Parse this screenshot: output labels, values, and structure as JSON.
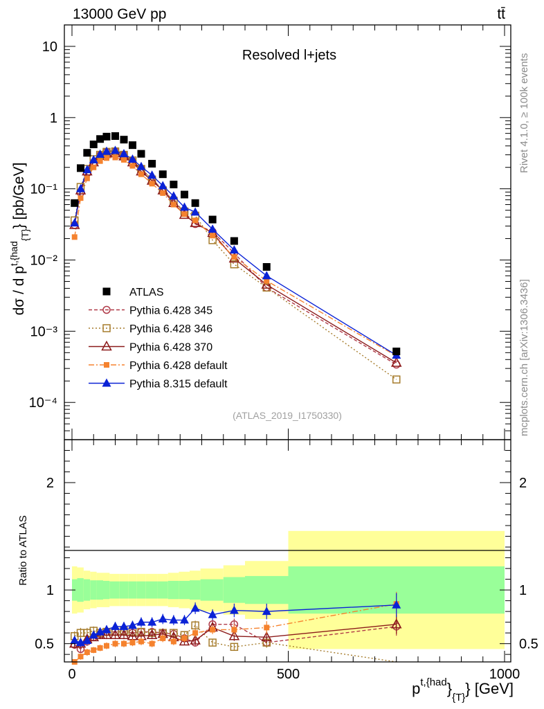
{
  "header": {
    "left_title": "13000 GeV pp",
    "right_title": "tt̄"
  },
  "main_panel": {
    "title": "Resolved l+jets",
    "ylabel_prefix": "dσ / d p",
    "ylabel_sup": "t,{had",
    "ylabel_sub": "{T}",
    "ylabel_suffix": "} [pb/GeV]",
    "ytick_labels": [
      "10⁻⁴",
      "10⁻³",
      "10⁻²",
      "10⁻¹",
      "1",
      "10"
    ],
    "analysis_id": "(ATLAS_2019_I1750330)"
  },
  "side_labels": {
    "rivet": "Rivet 4.1.0, ≥ 100k events",
    "mcplots": "mcplots.cern.ch [arXiv:1306.3436]"
  },
  "ratio_panel": {
    "ylabel": "Ratio to ATLAS",
    "ytick_labels": [
      "0.5",
      "1",
      "2"
    ],
    "xtick_labels": [
      "0",
      "500",
      "1000"
    ],
    "xlabel_main": "p",
    "xlabel_sup": "t,{had",
    "xlabel_sub": "}",
    "xlabel_sub2": "{T}",
    "xlabel_suffix": "} [GeV]"
  },
  "legend": [
    {
      "label": "ATLAS"
    },
    {
      "label": "Pythia 6.428 345"
    },
    {
      "label": "Pythia 6.428 346"
    },
    {
      "label": "Pythia 6.428 370"
    },
    {
      "label": "Pythia 6.428 default"
    },
    {
      "label": "Pythia 8.315 default"
    }
  ],
  "chart_data": {
    "type": "line",
    "title": "Resolved l+jets",
    "xlabel": "p_T^{t,had} [GeV]",
    "ylabel": "dσ / d p_T^{t,had} [pb/GeV]",
    "xlim": [
      -10,
      1000
    ],
    "ylim": [
      3e-05,
      20
    ],
    "yscale": "log",
    "ratio_ylim": [
      0.33,
      2.4
    ],
    "x": [
      6,
      20,
      35,
      50,
      65,
      80,
      100,
      120,
      140,
      160,
      185,
      210,
      235,
      260,
      285,
      325,
      375,
      450,
      750
    ],
    "series": [
      {
        "name": "ATLAS",
        "color": "#000000",
        "marker": "square",
        "values": [
          0.063,
          0.195,
          0.32,
          0.42,
          0.5,
          0.54,
          0.55,
          0.49,
          0.41,
          0.31,
          0.225,
          0.16,
          0.115,
          0.083,
          0.063,
          0.037,
          0.0185,
          0.008,
          0.00052
        ],
        "stat_err": [
          0.06,
          0.06,
          0.06,
          0.05,
          0.05,
          0.05,
          0.05,
          0.05,
          0.05,
          0.05,
          0.05,
          0.05,
          0.05,
          0.05,
          0.05,
          0.05,
          0.06,
          0.07,
          0.1
        ]
      },
      {
        "name": "Pythia 6.428 345",
        "color": "#b03a48",
        "marker": "open-circle",
        "values": [
          0.031,
          0.088,
          0.165,
          0.235,
          0.295,
          0.33,
          0.335,
          0.3,
          0.245,
          0.19,
          0.137,
          0.096,
          0.068,
          0.046,
          0.032,
          0.025,
          0.0125,
          0.0041,
          0.00034
        ],
        "ratio": [
          0.49,
          0.45,
          0.52,
          0.56,
          0.59,
          0.61,
          0.61,
          0.61,
          0.6,
          0.61,
          0.61,
          0.6,
          0.59,
          0.55,
          0.51,
          0.68,
          0.68,
          0.51,
          0.66
        ]
      },
      {
        "name": "Pythia 6.428 346",
        "color": "#a67c2c",
        "marker": "open-square",
        "values": [
          0.036,
          0.106,
          0.19,
          0.26,
          0.3,
          0.33,
          0.335,
          0.3,
          0.25,
          0.19,
          0.135,
          0.095,
          0.068,
          0.048,
          0.042,
          0.019,
          0.0087,
          0.0041,
          0.00021
        ],
        "ratio": [
          0.57,
          0.6,
          0.6,
          0.62,
          0.6,
          0.61,
          0.61,
          0.62,
          0.61,
          0.61,
          0.6,
          0.6,
          0.6,
          0.58,
          0.67,
          0.51,
          0.47,
          0.51,
          0.26
        ]
      },
      {
        "name": "Pythia 6.428 370",
        "color": "#8b1a1a",
        "marker": "open-triangle",
        "values": [
          0.031,
          0.095,
          0.175,
          0.235,
          0.29,
          0.315,
          0.315,
          0.285,
          0.235,
          0.175,
          0.13,
          0.095,
          0.063,
          0.043,
          0.033,
          0.024,
          0.0105,
          0.0045,
          0.00036
        ],
        "ratio": [
          0.5,
          0.5,
          0.54,
          0.56,
          0.58,
          0.58,
          0.58,
          0.58,
          0.57,
          0.57,
          0.58,
          0.59,
          0.56,
          0.52,
          0.53,
          0.65,
          0.57,
          0.56,
          0.68
        ]
      },
      {
        "name": "Pythia 6.428 default",
        "color": "#f5822e",
        "marker": "filled-square-small",
        "values": [
          0.021,
          0.074,
          0.14,
          0.2,
          0.245,
          0.27,
          0.275,
          0.255,
          0.21,
          0.16,
          0.118,
          0.087,
          0.06,
          0.044,
          0.036,
          0.022,
          0.011,
          0.0051,
          0.00045
        ],
        "ratio": [
          0.33,
          0.38,
          0.42,
          0.44,
          0.46,
          0.48,
          0.5,
          0.5,
          0.51,
          0.52,
          0.5,
          0.55,
          0.52,
          0.55,
          0.6,
          0.63,
          0.63,
          0.65,
          0.87
        ]
      },
      {
        "name": "Pythia 8.315 default",
        "color": "#0a22d6",
        "marker": "filled-triangle",
        "values": [
          0.033,
          0.1,
          0.185,
          0.255,
          0.305,
          0.335,
          0.345,
          0.31,
          0.26,
          0.205,
          0.155,
          0.11,
          0.079,
          0.055,
          0.047,
          0.027,
          0.0138,
          0.006,
          0.00046
        ],
        "ratio": [
          0.53,
          0.51,
          0.53,
          0.58,
          0.61,
          0.63,
          0.66,
          0.66,
          0.67,
          0.7,
          0.7,
          0.73,
          0.72,
          0.72,
          0.83,
          0.77,
          0.81,
          0.8,
          0.86
        ]
      }
    ],
    "ratio_bands": {
      "x_edges": [
        0,
        12,
        27,
        42,
        57,
        72,
        87,
        110,
        130,
        150,
        170,
        197,
        222,
        247,
        272,
        297,
        350,
        400,
        500,
        1000
      ],
      "stat_half_width": [
        0.1,
        0.11,
        0.1,
        0.09,
        0.09,
        0.085,
        0.08,
        0.08,
        0.08,
        0.08,
        0.08,
        0.08,
        0.085,
        0.085,
        0.09,
        0.1,
        0.12,
        0.13,
        0.22
      ],
      "total_half_width": [
        0.22,
        0.21,
        0.18,
        0.17,
        0.16,
        0.16,
        0.15,
        0.15,
        0.15,
        0.15,
        0.15,
        0.15,
        0.16,
        0.17,
        0.18,
        0.2,
        0.23,
        0.27,
        0.55
      ]
    }
  }
}
